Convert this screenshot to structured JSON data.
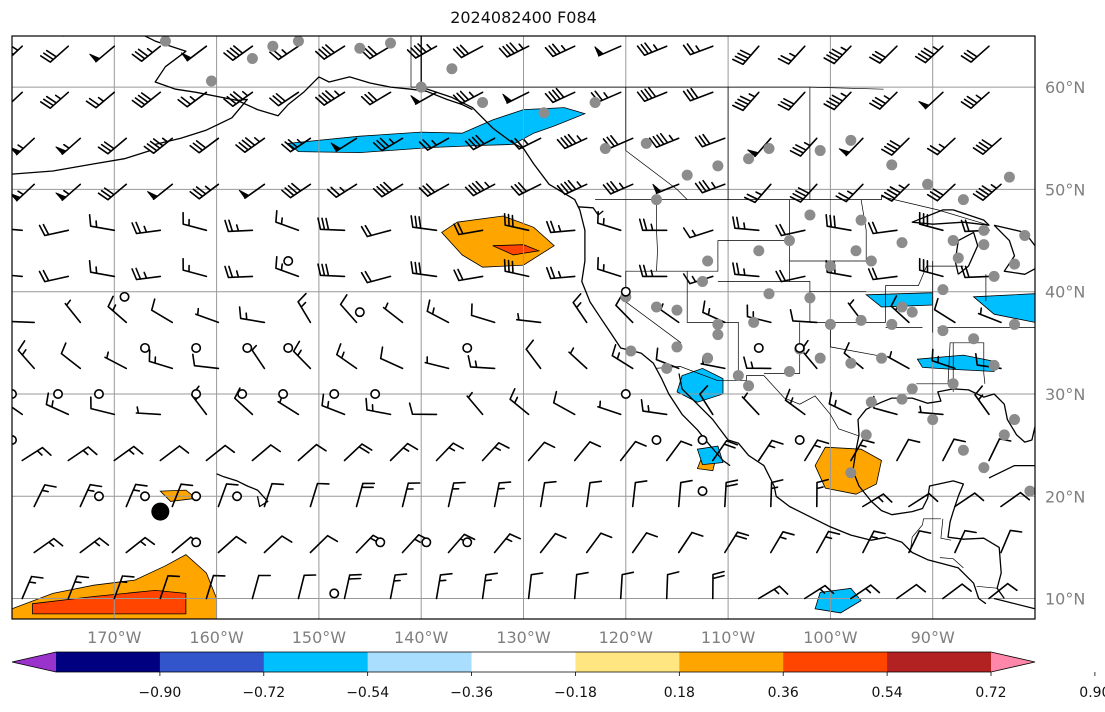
{
  "title": "2024082400 F084",
  "map": {
    "projection": "plate-carree",
    "lon_range": [
      -180,
      -80
    ],
    "lat_range": [
      8,
      65
    ],
    "grid": true,
    "lon_ticks": [
      {
        "value": -170,
        "label": "170°W"
      },
      {
        "value": -160,
        "label": "160°W"
      },
      {
        "value": -150,
        "label": "150°W"
      },
      {
        "value": -140,
        "label": "140°W"
      },
      {
        "value": -130,
        "label": "130°W"
      },
      {
        "value": -120,
        "label": "120°W"
      },
      {
        "value": -110,
        "label": "110°W"
      },
      {
        "value": -100,
        "label": "100°W"
      },
      {
        "value": -90,
        "label": "90°W"
      }
    ],
    "lat_ticks": [
      {
        "value": 60,
        "label": "60°N"
      },
      {
        "value": 50,
        "label": "50°N"
      },
      {
        "value": 40,
        "label": "40°N"
      },
      {
        "value": 30,
        "label": "30°N"
      },
      {
        "value": 20,
        "label": "20°N"
      },
      {
        "value": 10,
        "label": "10°N"
      }
    ],
    "colors": {
      "land_line": "#000000",
      "grid_line": "#999999",
      "station_dot": "#8c8c8c",
      "marker": "#000000"
    }
  },
  "colorbar": {
    "extend": "both",
    "bins": [
      {
        "color": "#9933cc"
      },
      {
        "color": "#000080"
      },
      {
        "color": "#3355cc"
      },
      {
        "color": "#00bfff"
      },
      {
        "color": "#aadeff"
      },
      {
        "color": "#ffffff"
      },
      {
        "color": "#ffe680"
      },
      {
        "color": "#ffa500"
      },
      {
        "color": "#ff4500"
      },
      {
        "color": "#b22222"
      },
      {
        "color": "#ff88aa"
      }
    ],
    "tick_labels": [
      "−0.90",
      "−0.72",
      "−0.54",
      "−0.36",
      "−0.18",
      "0.18",
      "0.36",
      "0.54",
      "0.72",
      "0.90"
    ]
  },
  "contours": [
    {
      "color": "#00bfff",
      "points": [
        [
          -153,
          54.5
        ],
        [
          -146,
          55.2
        ],
        [
          -140,
          55.6
        ],
        [
          -136,
          55.5
        ],
        [
          -133,
          56.8
        ],
        [
          -130,
          57.8
        ],
        [
          -126,
          58
        ],
        [
          -124,
          57.4
        ],
        [
          -127,
          56.2
        ],
        [
          -129,
          55.5
        ],
        [
          -131,
          54.4
        ],
        [
          -134,
          54.3
        ],
        [
          -139,
          54.1
        ],
        [
          -146,
          53.6
        ],
        [
          -152,
          53.7
        ]
      ]
    },
    {
      "color": "#ffa500",
      "points": [
        [
          -136.5,
          46.8
        ],
        [
          -132,
          47.4
        ],
        [
          -129,
          46.3
        ],
        [
          -127,
          44.5
        ],
        [
          -130,
          42.6
        ],
        [
          -134,
          42.4
        ],
        [
          -136,
          43.6
        ],
        [
          -138,
          45.8
        ]
      ]
    },
    {
      "color": "#ff4500",
      "points": [
        [
          -133,
          44.5
        ],
        [
          -130,
          44.6
        ],
        [
          -128.5,
          44
        ],
        [
          -131,
          43.6
        ]
      ]
    },
    {
      "color": "#00bfff",
      "points": [
        [
          -114.5,
          31.8
        ],
        [
          -112.5,
          32.5
        ],
        [
          -110.5,
          31.5
        ],
        [
          -110.5,
          30
        ],
        [
          -113,
          29.2
        ],
        [
          -115,
          30.2
        ]
      ]
    },
    {
      "color": "#ffa500",
      "points": [
        [
          -100.5,
          24.8
        ],
        [
          -97,
          24.6
        ],
        [
          -95,
          23.5
        ],
        [
          -95.5,
          21.2
        ],
        [
          -97.5,
          20.2
        ],
        [
          -100.5,
          20.8
        ],
        [
          -101.5,
          23
        ]
      ]
    },
    {
      "color": "#ffa500",
      "points": [
        [
          -180,
          9
        ],
        [
          -176,
          10.5
        ],
        [
          -172,
          11.3
        ],
        [
          -168,
          11.8
        ],
        [
          -165,
          13.2
        ],
        [
          -163,
          14.3
        ],
        [
          -161,
          12.5
        ],
        [
          -160,
          10
        ],
        [
          -160,
          8
        ],
        [
          -180,
          8
        ]
      ]
    },
    {
      "color": "#ff4500",
      "points": [
        [
          -178,
          9.5
        ],
        [
          -172,
          10.2
        ],
        [
          -166,
          10.8
        ],
        [
          -163,
          10.5
        ],
        [
          -163,
          8.5
        ],
        [
          -178,
          8.5
        ]
      ]
    },
    {
      "color": "#00bfff",
      "points": [
        [
          -91.5,
          33.4
        ],
        [
          -87,
          33.8
        ],
        [
          -84,
          33.2
        ],
        [
          -84,
          32.2
        ],
        [
          -88,
          32.4
        ],
        [
          -91,
          32.6
        ]
      ]
    },
    {
      "color": "#00bfff",
      "points": [
        [
          -101,
          10.6
        ],
        [
          -98,
          11
        ],
        [
          -97,
          9.8
        ],
        [
          -99,
          8.6
        ],
        [
          -101.5,
          9
        ]
      ]
    },
    {
      "color": "#ffa500",
      "points": [
        [
          -112.5,
          24
        ],
        [
          -111,
          24.5
        ],
        [
          -111.5,
          22.5
        ],
        [
          -113,
          22.7
        ]
      ]
    },
    {
      "color": "#00bfff",
      "points": [
        [
          -96.5,
          39.7
        ],
        [
          -90,
          39.9
        ],
        [
          -90,
          38.7
        ],
        [
          -95,
          38.5
        ]
      ]
    },
    {
      "color": "#00bfff",
      "points": [
        [
          -86,
          39.5
        ],
        [
          -80,
          39.8
        ],
        [
          -80,
          37
        ],
        [
          -84,
          37.8
        ]
      ]
    },
    {
      "color": "#ffa500",
      "points": [
        [
          -165.5,
          20.5
        ],
        [
          -163,
          20.6
        ],
        [
          -162,
          19.8
        ],
        [
          -164.5,
          19.5
        ]
      ]
    },
    {
      "color": "#00bfff",
      "points": [
        [
          -113,
          24.6
        ],
        [
          -111,
          24.9
        ],
        [
          -110.5,
          23.3
        ],
        [
          -112.5,
          23.1
        ]
      ]
    }
  ],
  "stations": [
    [
      -165,
      64.5
    ],
    [
      -160.5,
      60.6
    ],
    [
      -156.5,
      62.8
    ],
    [
      -154.5,
      64
    ],
    [
      -152,
      64.5
    ],
    [
      -146,
      63.8
    ],
    [
      -143,
      64.3
    ],
    [
      -140,
      60
    ],
    [
      -137,
      61.8
    ],
    [
      -134,
      58.5
    ],
    [
      -128,
      57.5
    ],
    [
      -123,
      58.5
    ],
    [
      -122,
      54
    ],
    [
      -118,
      54.5
    ],
    [
      -117,
      49
    ],
    [
      -114,
      51.4
    ],
    [
      -111,
      52.3
    ],
    [
      -108,
      53
    ],
    [
      -106,
      54
    ],
    [
      -101,
      53.8
    ],
    [
      -98,
      54.8
    ],
    [
      -94,
      52.4
    ],
    [
      -90.5,
      50.5
    ],
    [
      -87,
      49
    ],
    [
      -82.5,
      51.2
    ],
    [
      -85,
      46
    ],
    [
      -88,
      45
    ],
    [
      -97,
      47
    ],
    [
      -102,
      47.5
    ],
    [
      -97.5,
      44
    ],
    [
      -93,
      44.8
    ],
    [
      -96,
      43
    ],
    [
      -100,
      42.5
    ],
    [
      -104,
      45
    ],
    [
      -107,
      44
    ],
    [
      -112,
      43
    ],
    [
      -112.5,
      41
    ],
    [
      -120,
      39.5
    ],
    [
      -117,
      38.5
    ],
    [
      -106,
      39.8
    ],
    [
      -102,
      39.4
    ],
    [
      -97,
      37.2
    ],
    [
      -94,
      36.8
    ],
    [
      -92,
      38
    ],
    [
      -89,
      36.2
    ],
    [
      -86,
      35.4
    ],
    [
      -82,
      36.8
    ],
    [
      -84,
      32.8
    ],
    [
      -88,
      31
    ],
    [
      -92,
      30.5
    ],
    [
      -95,
      33.5
    ],
    [
      -98,
      33
    ],
    [
      -101,
      33.5
    ],
    [
      -104,
      32.2
    ],
    [
      -109,
      31.8
    ],
    [
      -112,
      33.5
    ],
    [
      -116,
      32.5
    ],
    [
      -119.5,
      34.2
    ],
    [
      -115,
      38.2
    ],
    [
      -111,
      35.8
    ],
    [
      -107.5,
      37
    ],
    [
      -100,
      36.8
    ],
    [
      -103,
      34.4
    ],
    [
      -108,
      30.8
    ],
    [
      -96,
      29.2
    ],
    [
      -93,
      29.5
    ],
    [
      -90,
      27.5
    ],
    [
      -87,
      24.5
    ],
    [
      -85,
      22.8
    ],
    [
      -83,
      26
    ],
    [
      -82,
      27.5
    ],
    [
      -80.5,
      20.5
    ],
    [
      -96.5,
      26
    ],
    [
      -98,
      22.3
    ],
    [
      -93,
      38.5
    ],
    [
      -89,
      40.2
    ],
    [
      -84,
      41.5
    ],
    [
      -87.5,
      43.3
    ],
    [
      -81,
      45.5
    ],
    [
      -85,
      44.6
    ],
    [
      -82,
      42.7
    ],
    [
      -115,
      34.6
    ],
    [
      -111,
      36.8
    ]
  ],
  "hollow_circles": [
    [
      -180,
      30
    ],
    [
      -175.5,
      30
    ],
    [
      -171.5,
      30
    ],
    [
      -162,
      30
    ],
    [
      -157.5,
      30
    ],
    [
      -153.5,
      30
    ],
    [
      -148.5,
      30
    ],
    [
      -144.5,
      30
    ],
    [
      -180,
      25.5
    ],
    [
      -171.5,
      20
    ],
    [
      -167,
      20
    ],
    [
      -162,
      20
    ],
    [
      -158,
      20
    ],
    [
      -162,
      15.5
    ],
    [
      -146,
      38
    ],
    [
      -135.5,
      34.5
    ],
    [
      -144,
      15.5
    ],
    [
      -139.5,
      15.5
    ],
    [
      -148.5,
      10.5
    ],
    [
      -162,
      34.5
    ],
    [
      -167,
      34.5
    ],
    [
      -157,
      34.5
    ],
    [
      -153,
      34.5
    ],
    [
      -153,
      43
    ],
    [
      -120,
      30
    ],
    [
      -117,
      25.5
    ],
    [
      -112.5,
      20.5
    ],
    [
      -103,
      25.5
    ],
    [
      -112.5,
      25.5
    ],
    [
      -135.5,
      15.5
    ],
    [
      -120,
      40
    ],
    [
      -107,
      34.5
    ],
    [
      -103,
      34.5
    ],
    [
      -169,
      39.5
    ]
  ],
  "big_marker": [
    -165.5,
    18.5
  ]
}
